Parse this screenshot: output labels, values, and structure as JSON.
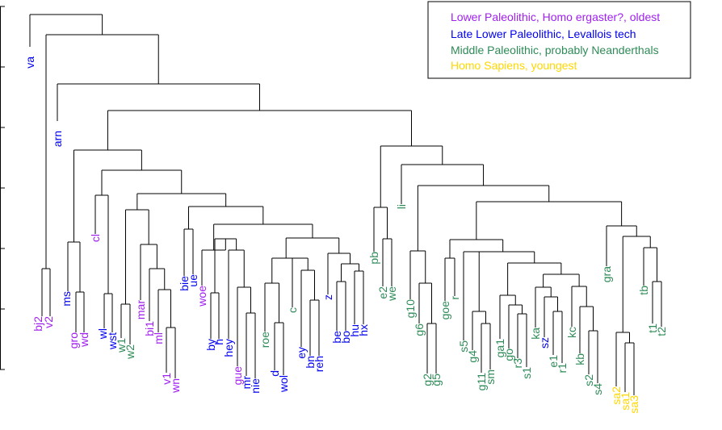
{
  "chart_data": {
    "type": "dendrogram",
    "title": "",
    "xlabel": "",
    "ylabel": "",
    "legend_position": "top-right",
    "groups": {
      "L": {
        "label": "Lower Paleolithic, Homo ergaster?, oldest",
        "color": "#a020f0"
      },
      "M": {
        "label": "Late Lower Paleolithic, Levallois tech",
        "color": "#0000ee"
      },
      "N": {
        "label": "Middle Paleolithic, probably Neanderthals",
        "color": "#2e8b57"
      },
      "S": {
        "label": "Homo Sapiens, youngest",
        "color": "#ffd700"
      }
    },
    "leaves": [
      {
        "name": "va",
        "group": "M"
      },
      {
        "name": "bj2",
        "group": "L"
      },
      {
        "name": "v2",
        "group": "L"
      },
      {
        "name": "arn",
        "group": "M"
      },
      {
        "name": "ms",
        "group": "M"
      },
      {
        "name": "gro",
        "group": "L"
      },
      {
        "name": "wd",
        "group": "L"
      },
      {
        "name": "cl",
        "group": "L"
      },
      {
        "name": "wl",
        "group": "M"
      },
      {
        "name": "wst",
        "group": "M"
      },
      {
        "name": "w1",
        "group": "N"
      },
      {
        "name": "w2",
        "group": "N"
      },
      {
        "name": "mar",
        "group": "L"
      },
      {
        "name": "bi1",
        "group": "L"
      },
      {
        "name": "ml",
        "group": "L"
      },
      {
        "name": "v1",
        "group": "L"
      },
      {
        "name": "wn",
        "group": "L"
      },
      {
        "name": "bie",
        "group": "M"
      },
      {
        "name": "ue",
        "group": "M"
      },
      {
        "name": "woe",
        "group": "L"
      },
      {
        "name": "by",
        "group": "M"
      },
      {
        "name": "h",
        "group": "M"
      },
      {
        "name": "hey",
        "group": "M"
      },
      {
        "name": "gue",
        "group": "L"
      },
      {
        "name": "mr",
        "group": "M"
      },
      {
        "name": "nie",
        "group": "M"
      },
      {
        "name": "roe",
        "group": "N"
      },
      {
        "name": "d",
        "group": "M"
      },
      {
        "name": "wol",
        "group": "M"
      },
      {
        "name": "c",
        "group": "N"
      },
      {
        "name": "ey",
        "group": "M"
      },
      {
        "name": "bn",
        "group": "M"
      },
      {
        "name": "reh",
        "group": "M"
      },
      {
        "name": "z",
        "group": "M"
      },
      {
        "name": "be",
        "group": "M"
      },
      {
        "name": "bo",
        "group": "M"
      },
      {
        "name": "hu",
        "group": "M"
      },
      {
        "name": "hx",
        "group": "M"
      },
      {
        "name": "pb",
        "group": "N"
      },
      {
        "name": "e2",
        "group": "N"
      },
      {
        "name": "we",
        "group": "N"
      },
      {
        "name": "li",
        "group": "N"
      },
      {
        "name": "g10",
        "group": "N"
      },
      {
        "name": "g6",
        "group": "N"
      },
      {
        "name": "g2",
        "group": "N"
      },
      {
        "name": "g5",
        "group": "N"
      },
      {
        "name": "goe",
        "group": "N"
      },
      {
        "name": "r",
        "group": "N"
      },
      {
        "name": "s5",
        "group": "N"
      },
      {
        "name": "g4",
        "group": "N"
      },
      {
        "name": "g11",
        "group": "N"
      },
      {
        "name": "sm",
        "group": "N"
      },
      {
        "name": "ga1",
        "group": "N"
      },
      {
        "name": "go",
        "group": "N"
      },
      {
        "name": "r3",
        "group": "N"
      },
      {
        "name": "s1",
        "group": "N"
      },
      {
        "name": "ka",
        "group": "N"
      },
      {
        "name": "sz",
        "group": "M"
      },
      {
        "name": "e1",
        "group": "N"
      },
      {
        "name": "r1",
        "group": "N"
      },
      {
        "name": "kc",
        "group": "N"
      },
      {
        "name": "kb",
        "group": "N"
      },
      {
        "name": "s2",
        "group": "N"
      },
      {
        "name": "s4",
        "group": "N"
      },
      {
        "name": "gra",
        "group": "N"
      },
      {
        "name": "sa2",
        "group": "S"
      },
      {
        "name": "sa1",
        "group": "S"
      },
      {
        "name": "sa3",
        "group": "S"
      },
      {
        "name": "tb",
        "group": "N"
      },
      {
        "name": "t1",
        "group": "N"
      },
      {
        "name": "t2",
        "group": "N"
      }
    ]
  }
}
